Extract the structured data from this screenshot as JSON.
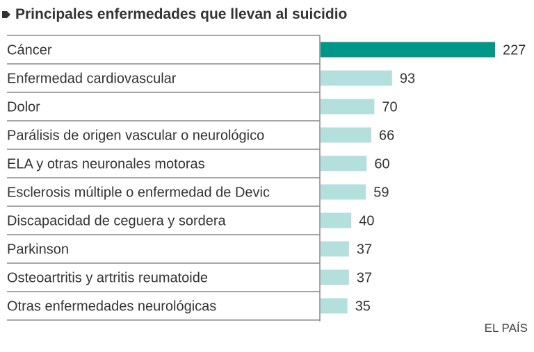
{
  "title": "Principales enfermedades que llevan al suicidio",
  "source": "EL PAÍS",
  "colors": {
    "highlight": "#00968a",
    "bar": "#b3e0dd",
    "rule": "#888888",
    "text": "#333333"
  },
  "chart_data": {
    "type": "bar",
    "orientation": "horizontal",
    "title": "Principales enfermedades que llevan al suicidio",
    "xlabel": "",
    "ylabel": "",
    "grid": false,
    "categories": [
      "Cáncer",
      "Enfermedad cardiovascular",
      "Dolor",
      "Parálisis de origen vascular o neurológico",
      "ELA y otras neuronales motoras",
      "Esclerosis múltiple o enfermedad de Devic",
      "Discapacidad de ceguera y sordera",
      "Parkinson",
      "Osteoartritis y artritis reumatoide",
      "Otras enfermedades neurológicas"
    ],
    "values": [
      227,
      93,
      70,
      66,
      60,
      59,
      40,
      37,
      37,
      35
    ],
    "highlighted_index": 0,
    "xlim": [
      0,
      227
    ],
    "data_labels": [
      "227",
      "93",
      "70",
      "66",
      "60",
      "59",
      "40",
      "37",
      "37",
      "35"
    ]
  }
}
